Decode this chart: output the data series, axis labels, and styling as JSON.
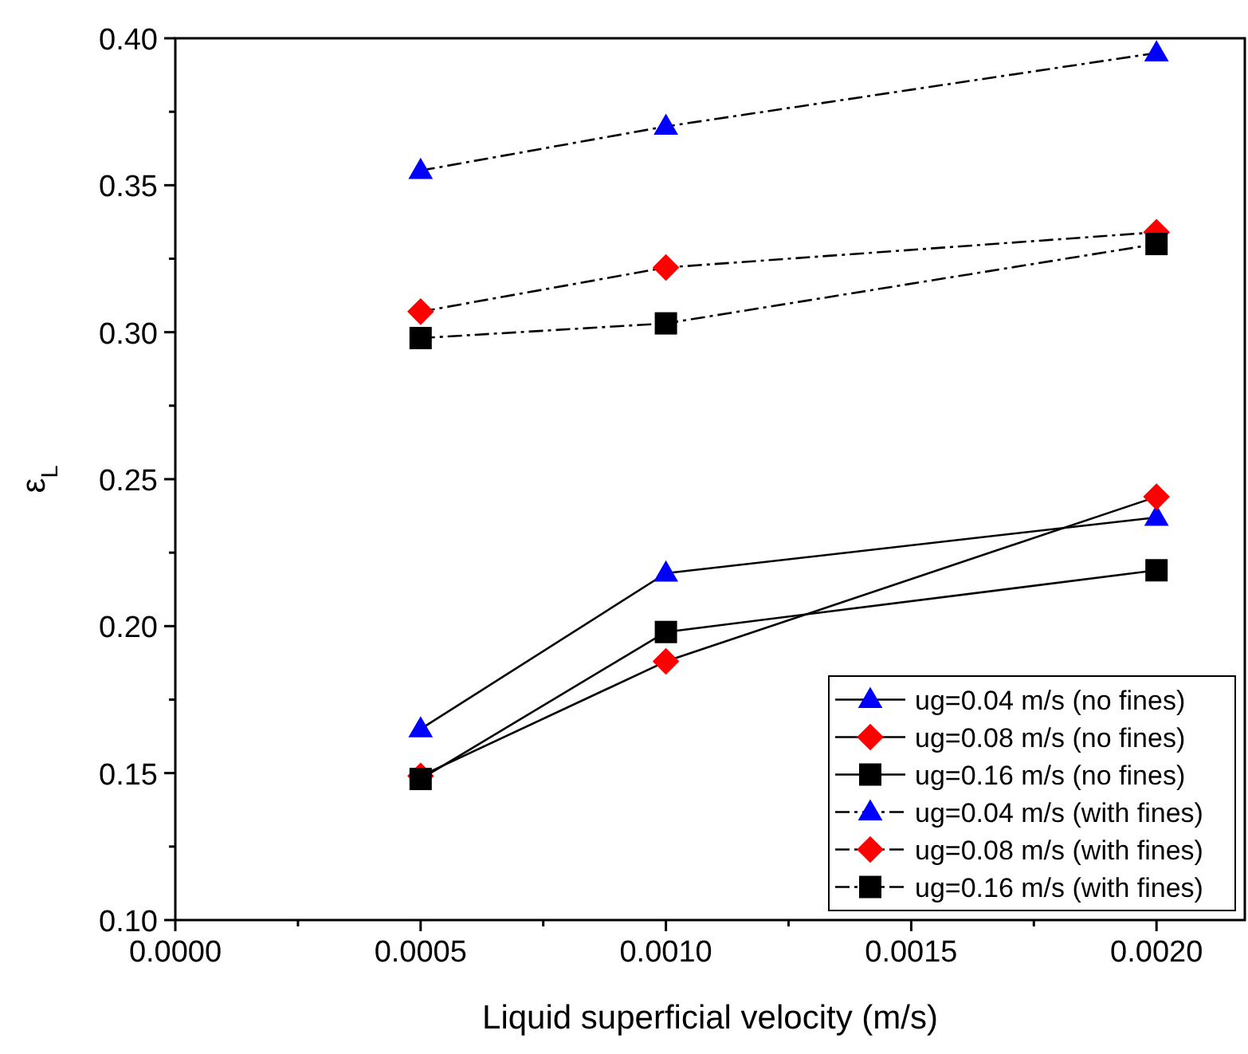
{
  "chart_data": {
    "type": "line",
    "xlabel": "Liquid superficial velocity (m/s)",
    "ylabel": "ε$_{L}$",
    "x": [
      0.0005,
      0.001,
      0.002
    ],
    "xlim": [
      0,
      0.00218
    ],
    "xticks": [
      {
        "value": 0,
        "label": "0.0000"
      },
      {
        "value": 0.00025,
        "label": null
      },
      {
        "value": 0.0005,
        "label": "0.0005"
      },
      {
        "value": 0.00075,
        "label": null
      },
      {
        "value": 0.001,
        "label": "0.0010"
      },
      {
        "value": 0.00125,
        "label": null
      },
      {
        "value": 0.0015,
        "label": "0.0015"
      },
      {
        "value": 0.00175,
        "label": null
      },
      {
        "value": 0.002,
        "label": "0.0020"
      }
    ],
    "ylim": [
      0.1,
      0.4
    ],
    "yticks": [
      {
        "value": 0.1,
        "label": "0.10"
      },
      {
        "value": 0.125,
        "label": null
      },
      {
        "value": 0.15,
        "label": "0.15"
      },
      {
        "value": 0.175,
        "label": null
      },
      {
        "value": 0.2,
        "label": "0.20"
      },
      {
        "value": 0.225,
        "label": null
      },
      {
        "value": 0.25,
        "label": "0.25"
      },
      {
        "value": 0.275,
        "label": null
      },
      {
        "value": 0.3,
        "label": "0.30"
      },
      {
        "value": 0.325,
        "label": null
      },
      {
        "value": 0.35,
        "label": "0.35"
      },
      {
        "value": 0.375,
        "label": null
      },
      {
        "value": 0.4,
        "label": "0.40"
      }
    ],
    "legend": "bottom right",
    "grid": false,
    "series": [
      {
        "name": "ug=0.04 m/s (no fines)",
        "color": "#0000ff",
        "marker": "triangle",
        "line_style": "solid",
        "values": [
          0.165,
          0.218,
          0.237
        ]
      },
      {
        "name": "ug=0.08 m/s (no fines)",
        "color": "#ff0000",
        "marker": "diamond",
        "line_style": "solid",
        "values": [
          0.149,
          0.188,
          0.244
        ]
      },
      {
        "name": "ug=0.16 m/s (no fines)",
        "color": "#000000",
        "marker": "square",
        "line_style": "solid",
        "values": [
          0.148,
          0.198,
          0.219
        ]
      },
      {
        "name": "ug=0.04 m/s (with fines)",
        "color": "#0000ff",
        "marker": "triangle",
        "line_style": "dashed",
        "values": [
          0.355,
          0.37,
          0.395
        ]
      },
      {
        "name": "ug=0.08 m/s (with fines)",
        "color": "#ff0000",
        "marker": "diamond",
        "line_style": "dashed",
        "values": [
          0.307,
          0.322,
          0.334
        ]
      },
      {
        "name": "ug=0.16 m/s (with fines)",
        "color": "#000000",
        "marker": "square",
        "line_style": "dashed",
        "values": [
          0.298,
          0.303,
          0.33
        ]
      }
    ]
  }
}
